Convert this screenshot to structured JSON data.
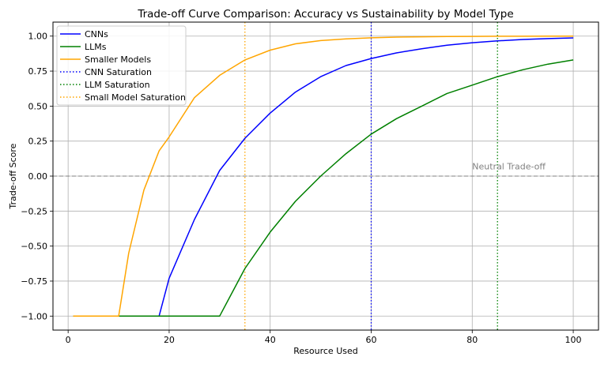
{
  "chart_data": {
    "type": "line",
    "title": "Trade-off Curve Comparison: Accuracy vs Sustainability by Model Type",
    "xlabel": "Resource Used",
    "ylabel": "Trade-off Score",
    "xlim": [
      -3,
      105
    ],
    "ylim": [
      -1.1,
      1.1
    ],
    "xticks": [
      0,
      20,
      40,
      60,
      80,
      100
    ],
    "yticks": [
      -1.0,
      -0.75,
      -0.5,
      -0.25,
      0.0,
      0.25,
      0.5,
      0.75,
      1.0
    ],
    "xtick_labels": [
      "0",
      "20",
      "40",
      "60",
      "80",
      "100"
    ],
    "ytick_labels": [
      "−1.00",
      "−0.75",
      "−0.50",
      "−0.25",
      "0.00",
      "0.25",
      "0.50",
      "0.75",
      "1.00"
    ],
    "grid": true,
    "legend_position": "top-left",
    "series": [
      {
        "name": "CNNs",
        "color": "#0000ff",
        "style": "solid",
        "x": [
          1,
          5,
          10,
          15,
          18,
          20,
          25,
          30,
          35,
          40,
          45,
          50,
          55,
          60,
          65,
          70,
          75,
          80,
          85,
          90,
          95,
          100
        ],
        "y": [
          -1.0,
          -1.0,
          -1.0,
          -1.0,
          -1.0,
          -0.73,
          -0.31,
          0.04,
          0.27,
          0.45,
          0.6,
          0.71,
          0.79,
          0.84,
          0.88,
          0.91,
          0.935,
          0.953,
          0.966,
          0.976,
          0.982,
          0.987
        ]
      },
      {
        "name": "LLMs",
        "color": "#008000",
        "style": "solid",
        "x": [
          1,
          5,
          10,
          15,
          20,
          25,
          30,
          35,
          40,
          45,
          50,
          55,
          60,
          65,
          70,
          75,
          80,
          85,
          90,
          95,
          100
        ],
        "y": [
          -1.0,
          -1.0,
          -1.0,
          -1.0,
          -1.0,
          -1.0,
          -1.0,
          -0.66,
          -0.4,
          -0.18,
          0.0,
          0.16,
          0.3,
          0.41,
          0.5,
          0.59,
          0.65,
          0.71,
          0.76,
          0.8,
          0.83
        ]
      },
      {
        "name": "Smaller Models",
        "color": "#ffa500",
        "style": "solid",
        "x": [
          1,
          5,
          10,
          12,
          15,
          18,
          20,
          25,
          30,
          35,
          40,
          45,
          50,
          55,
          60,
          65,
          70,
          75,
          80,
          85,
          90,
          95,
          100
        ],
        "y": [
          -1.0,
          -1.0,
          -1.0,
          -0.55,
          -0.1,
          0.18,
          0.28,
          0.56,
          0.72,
          0.83,
          0.9,
          0.945,
          0.968,
          0.98,
          0.988,
          0.993,
          0.995,
          0.997,
          0.998,
          0.999,
          0.999,
          0.9995,
          1.0
        ]
      }
    ],
    "vlines": [
      {
        "name": "CNN Saturation",
        "x": 60,
        "color": "#0000ff",
        "style": "dotted"
      },
      {
        "name": "LLM Saturation",
        "x": 85,
        "color": "#008000",
        "style": "dotted"
      },
      {
        "name": "Small Model Saturation",
        "x": 35,
        "color": "#ffa500",
        "style": "dotted"
      }
    ],
    "hline": {
      "y": 0.0,
      "color": "#808080",
      "style": "dashed"
    },
    "annotations": [
      {
        "text": "Neutral Trade-off",
        "x": 80,
        "y": 0.03,
        "color": "#808080"
      }
    ]
  }
}
